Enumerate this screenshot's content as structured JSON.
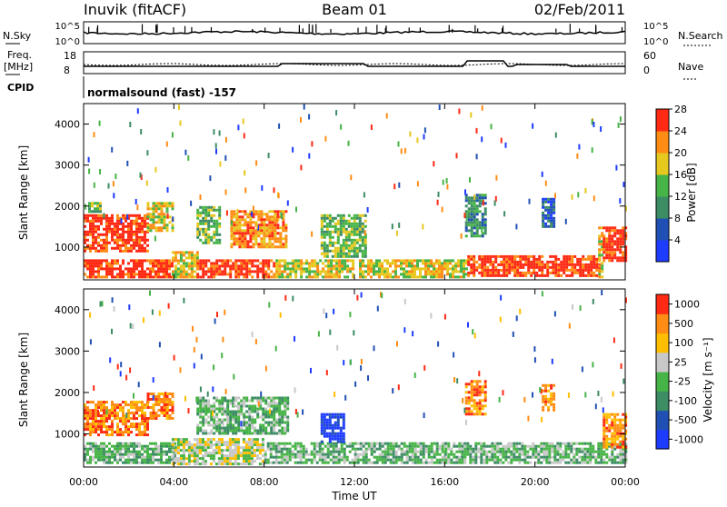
{
  "header": {
    "station": "Inuvik (fitACF)",
    "beam": "Beam 01",
    "date": "02/Feb/2011"
  },
  "top_panels": {
    "nsky_label": "N.Sky",
    "nsky_ticks": [
      "10^5",
      "10^0"
    ],
    "nsearch_label": "N.Search",
    "freq_label": "Freq.",
    "freq_unit": "[MHz]",
    "freq_ticks": [
      "18",
      "8"
    ],
    "nave_label": "Nave",
    "nave_ticks": [
      "60",
      "0"
    ],
    "cpid_label": "CPID",
    "cpid_value": "normalsound (fast) -157"
  },
  "chart_data": [
    {
      "type": "heatmap",
      "panel": "power",
      "ylabel": "Slant Range [km]",
      "xlabel": "",
      "xlim_hours": [
        0,
        24
      ],
      "x_ticks": [
        "00:00",
        "04:00",
        "08:00",
        "12:00",
        "16:00",
        "20:00",
        "00:00"
      ],
      "ylim": [
        200,
        4500
      ],
      "y_ticks": [
        1000,
        2000,
        3000,
        4000
      ],
      "colorbar": {
        "title": "Power [dB]",
        "ticks": [
          4,
          8,
          12,
          16,
          20,
          24,
          28
        ],
        "colors": [
          "#1e3cff",
          "#2050b4",
          "#3c8c64",
          "#46b446",
          "#e6c81e",
          "#ff8c14",
          "#ff2a14"
        ]
      },
      "regions": [
        {
          "t": [
            0.0,
            3.9
          ],
          "r": [
            300,
            700
          ],
          "level": 6
        },
        {
          "t": [
            0.0,
            2.8
          ],
          "r": [
            900,
            1800
          ],
          "level": 6
        },
        {
          "t": [
            0.2,
            0.7
          ],
          "r": [
            1850,
            2100
          ],
          "level": 3
        },
        {
          "t": [
            2.8,
            3.9
          ],
          "r": [
            1400,
            2100
          ],
          "level": 4
        },
        {
          "t": [
            3.9,
            5.0
          ],
          "r": [
            300,
            900
          ],
          "level": 4
        },
        {
          "t": [
            5.0,
            8.5
          ],
          "r": [
            300,
            700
          ],
          "level": 6
        },
        {
          "t": [
            5.0,
            6.0
          ],
          "r": [
            1100,
            2000
          ],
          "level": 3
        },
        {
          "t": [
            6.5,
            9.0
          ],
          "r": [
            1000,
            1900
          ],
          "level": 5
        },
        {
          "t": [
            8.5,
            12.0
          ],
          "r": [
            300,
            700
          ],
          "level": 4
        },
        {
          "t": [
            10.5,
            12.5
          ],
          "r": [
            800,
            1800
          ],
          "level": 3
        },
        {
          "t": [
            12.2,
            17.0
          ],
          "r": [
            300,
            700
          ],
          "level": 4
        },
        {
          "t": [
            17.0,
            22.8
          ],
          "r": [
            300,
            800
          ],
          "level": 6
        },
        {
          "t": [
            16.9,
            17.8
          ],
          "r": [
            1300,
            2300
          ],
          "level": 2
        },
        {
          "t": [
            20.3,
            20.8
          ],
          "r": [
            1500,
            2200
          ],
          "level": 1
        },
        {
          "t": [
            22.8,
            23.0
          ],
          "r": [
            300,
            1500
          ],
          "level": 4
        },
        {
          "t": [
            23.0,
            24.0
          ],
          "r": [
            700,
            1500
          ],
          "level": 6
        }
      ]
    },
    {
      "type": "heatmap",
      "panel": "velocity",
      "ylabel": "Slant Range [km]",
      "xlabel": "Time UT",
      "xlim_hours": [
        0,
        24
      ],
      "x_ticks": [
        "00:00",
        "04:00",
        "08:00",
        "12:00",
        "16:00",
        "20:00",
        "00:00"
      ],
      "ylim": [
        200,
        4500
      ],
      "y_ticks": [
        1000,
        2000,
        3000,
        4000
      ],
      "colorbar": {
        "title": "Velocity [m s⁻¹]",
        "ticks": [
          "1000",
          "500",
          "100",
          "25",
          "-25",
          "-100",
          "-500",
          "-1000"
        ],
        "colors": [
          "#1e3cff",
          "#2050b4",
          "#3c8c64",
          "#46b446",
          "#c8c8c8",
          "#ffbe00",
          "#ff8c14",
          "#ff2a14"
        ]
      },
      "regions": [
        {
          "t": [
            0.0,
            4.0
          ],
          "r": [
            300,
            800
          ],
          "level": 3
        },
        {
          "t": [
            0.0,
            2.8
          ],
          "r": [
            1000,
            1800
          ],
          "level": 6
        },
        {
          "t": [
            2.8,
            3.9
          ],
          "r": [
            1400,
            2000
          ],
          "level": 6
        },
        {
          "t": [
            3.9,
            8.0
          ],
          "r": [
            300,
            900
          ],
          "level": 4
        },
        {
          "t": [
            5.0,
            9.0
          ],
          "r": [
            1000,
            1900
          ],
          "level": 3
        },
        {
          "t": [
            8.0,
            16.0
          ],
          "r": [
            300,
            800
          ],
          "level": 3
        },
        {
          "t": [
            10.5,
            11.5
          ],
          "r": [
            800,
            1500
          ],
          "level": 0
        },
        {
          "t": [
            16.0,
            24.0
          ],
          "r": [
            300,
            800
          ],
          "level": 3
        },
        {
          "t": [
            16.9,
            17.8
          ],
          "r": [
            1500,
            2300
          ],
          "level": 6
        },
        {
          "t": [
            20.3,
            20.8
          ],
          "r": [
            1600,
            2200
          ],
          "level": 6
        },
        {
          "t": [
            23.0,
            24.0
          ],
          "r": [
            700,
            1500
          ],
          "level": 6
        }
      ]
    }
  ]
}
